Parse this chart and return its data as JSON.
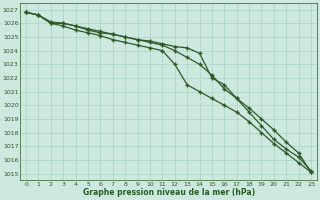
{
  "background_color": "#cce8df",
  "grid_color": "#aad4c8",
  "line_color": "#2d5a27",
  "text_color": "#2d5a27",
  "xlabel": "Graphe pression niveau de la mer (hPa)",
  "ylim": [
    1014.5,
    1027.5
  ],
  "xlim": [
    -0.5,
    23.5
  ],
  "yticks": [
    1015,
    1016,
    1017,
    1018,
    1019,
    1020,
    1021,
    1022,
    1023,
    1024,
    1025,
    1026,
    1027
  ],
  "xticks": [
    0,
    1,
    2,
    3,
    4,
    5,
    6,
    7,
    8,
    9,
    10,
    11,
    12,
    13,
    14,
    15,
    16,
    17,
    18,
    19,
    20,
    21,
    22,
    23
  ],
  "series1": [
    1026.8,
    1026.6,
    1026.0,
    1026.0,
    1025.8,
    1025.5,
    1025.3,
    1025.2,
    1025.0,
    1024.8,
    1024.7,
    1024.5,
    1024.3,
    1024.2,
    1023.8,
    1022.0,
    1021.5,
    1020.5,
    1019.5,
    1018.5,
    1017.5,
    1016.8,
    1016.2,
    1015.2
  ],
  "series2": [
    1026.8,
    1026.6,
    1026.0,
    1025.8,
    1025.5,
    1025.3,
    1025.1,
    1024.8,
    1024.6,
    1024.4,
    1024.2,
    1024.0,
    1023.0,
    1021.5,
    1021.0,
    1020.5,
    1020.0,
    1019.5,
    1018.8,
    1018.0,
    1017.2,
    1016.5,
    1015.8,
    1015.1
  ],
  "series3": [
    1026.8,
    1026.6,
    1026.1,
    1026.0,
    1025.8,
    1025.6,
    1025.4,
    1025.2,
    1025.0,
    1024.8,
    1024.6,
    1024.4,
    1024.0,
    1023.5,
    1023.0,
    1022.2,
    1021.2,
    1020.5,
    1019.8,
    1019.0,
    1018.2,
    1017.3,
    1016.5,
    1015.1
  ]
}
